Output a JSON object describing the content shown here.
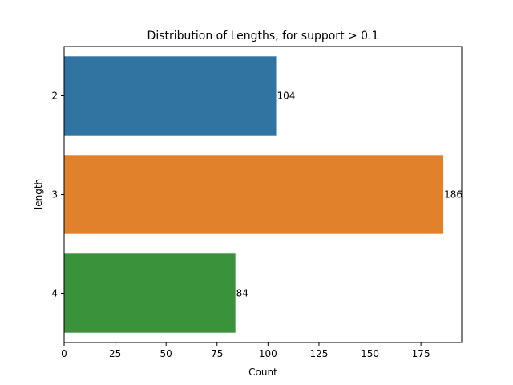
{
  "chart_data": {
    "type": "bar",
    "orientation": "horizontal",
    "title": "Distribution of Lengths, for support > 0.1",
    "xlabel": "Count",
    "ylabel": "length",
    "categories": [
      "2",
      "3",
      "4"
    ],
    "values": [
      104,
      186,
      84
    ],
    "data_labels": [
      "104",
      "186",
      "84"
    ],
    "colors": [
      "#3274a1",
      "#e1812c",
      "#3a923a"
    ],
    "xlim": [
      0,
      195
    ],
    "xticks": [
      0,
      25,
      50,
      75,
      100,
      125,
      150,
      175
    ],
    "grid": false,
    "legend": "none"
  }
}
